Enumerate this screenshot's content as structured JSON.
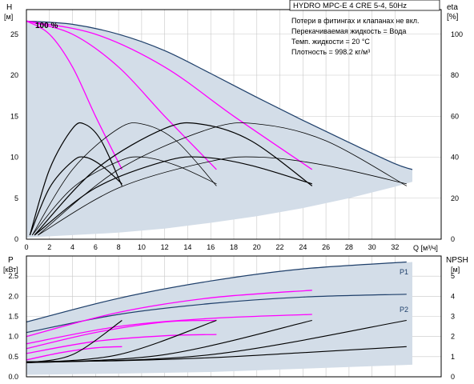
{
  "chart_data": [
    {
      "type": "line",
      "panel": "head_efficiency",
      "title": "HYDRO MPC-E 4 CRE 5-4, 50Hz",
      "notes": [
        "Потери в фитингах и клапанах не вкл.",
        "Перекачиваемая жидкость = Вода",
        "Темп. жидкости = 20 °C",
        "Плотность = 998.2 кг/м³"
      ],
      "annotation": "100 %",
      "xlabel": "Q [м³/ч]",
      "ylabel_left": [
        "H",
        "[м]"
      ],
      "ylabel_right": [
        "eta",
        "[%]"
      ],
      "xlim": [
        0,
        36
      ],
      "ylim_left": [
        0,
        28
      ],
      "ylim_right": [
        0,
        112
      ],
      "xticks": [
        "0",
        "2",
        "4",
        "6",
        "8",
        "10",
        "12",
        "14",
        "16",
        "18",
        "20",
        "22",
        "24",
        "26",
        "28",
        "30",
        "32"
      ],
      "yticks_left": [
        "0",
        "5",
        "10",
        "15",
        "20",
        "25"
      ],
      "yticks_right": [
        "0",
        "20",
        "40",
        "60",
        "80",
        "100"
      ],
      "grid": true,
      "colors": {
        "envelope": "#d3dde8",
        "max_curve": "#1e3f6a",
        "pump_curve": "#ff00ff",
        "eta": "#000000",
        "axis": "#000000"
      },
      "series": [
        {
          "kind": "envelope_max",
          "x": [
            0,
            4,
            8,
            12,
            16,
            20,
            24,
            28,
            32,
            33.5
          ],
          "y": [
            26.6,
            26.2,
            25,
            23,
            20.2,
            17.3,
            14.5,
            11.8,
            9.2,
            8.5
          ]
        },
        {
          "kind": "envelope_min",
          "x": [
            0,
            4,
            8,
            12,
            16,
            20,
            24,
            28,
            32,
            33.5
          ],
          "y": [
            0.2,
            0.5,
            0.8,
            1.3,
            2,
            2.8,
            3.8,
            5,
            6.4,
            7
          ]
        },
        {
          "kind": "pump_curve",
          "units": 1,
          "x": [
            0,
            2,
            4,
            6,
            8.3
          ],
          "y": [
            26.6,
            25,
            21,
            15,
            8.5
          ]
        },
        {
          "kind": "pump_curve",
          "units": 2,
          "x": [
            0,
            4,
            8,
            12,
            16.5
          ],
          "y": [
            26.6,
            25,
            21,
            15,
            8.5
          ]
        },
        {
          "kind": "pump_curve",
          "units": 3,
          "x": [
            0,
            6,
            12,
            18,
            24.8
          ],
          "y": [
            26.6,
            25,
            21,
            15,
            8.5
          ]
        },
        {
          "kind": "eta_curve",
          "units": 1,
          "x": [
            0.3,
            2,
            4,
            5.1,
            6.5,
            8.3
          ],
          "y": [
            2,
            34,
            54,
            56,
            48,
            26
          ]
        },
        {
          "kind": "eta_curve",
          "units": 2,
          "x": [
            0.5,
            4,
            8,
            10.2,
            13,
            16.5
          ],
          "y": [
            2,
            34,
            54,
            56,
            48,
            26
          ]
        },
        {
          "kind": "eta_curve",
          "units": 3,
          "x": [
            0.7,
            6,
            12,
            15.3,
            19.5,
            24.8
          ],
          "y": [
            2,
            34,
            54,
            56,
            48,
            26
          ]
        },
        {
          "kind": "eta_curve",
          "units": 4,
          "x": [
            1,
            8,
            16,
            20.4,
            26,
            33
          ],
          "y": [
            2,
            34,
            54,
            56,
            48,
            26
          ]
        },
        {
          "kind": "eta_curve",
          "units": 1,
          "x": [
            0.3,
            2,
            4,
            5.1,
            6.5,
            8.3
          ],
          "y": [
            2,
            25,
            38,
            40,
            36,
            27
          ]
        },
        {
          "kind": "eta_curve",
          "units": 2,
          "x": [
            0.5,
            4,
            8,
            10.2,
            13,
            16.5
          ],
          "y": [
            2,
            25,
            38,
            40,
            36,
            27
          ]
        },
        {
          "kind": "eta_curve",
          "units": 3,
          "x": [
            0.7,
            6,
            12,
            15.3,
            19.5,
            24.8
          ],
          "y": [
            2,
            25,
            38,
            40,
            36,
            27
          ]
        },
        {
          "kind": "eta_curve",
          "units": 4,
          "x": [
            1,
            8,
            16,
            20.4,
            26,
            33
          ],
          "y": [
            2,
            25,
            38,
            40,
            36,
            27
          ]
        }
      ]
    },
    {
      "type": "line",
      "panel": "power_npsh",
      "xlim": [
        0,
        36
      ],
      "ylim_left": [
        0,
        3
      ],
      "ylim_right": [
        0,
        6
      ],
      "ylabel_left": [
        "P",
        "[кВт]"
      ],
      "ylabel_right": [
        "NPSH",
        "[м]"
      ],
      "yticks_left": [
        "0.0",
        "0.5",
        "1.0",
        "1.5",
        "2.0",
        "2.5"
      ],
      "yticks_right": [
        "0",
        "1",
        "2",
        "3",
        "4",
        "5"
      ],
      "series_labels": [
        "P1",
        "P2"
      ],
      "grid": true,
      "series": [
        {
          "kind": "envelope_max",
          "x": [
            0,
            8,
            16,
            24,
            33.5
          ],
          "y": [
            1.38,
            1.95,
            2.38,
            2.68,
            2.85
          ]
        },
        {
          "kind": "envelope_min",
          "x": [
            0,
            8,
            16,
            24,
            33.5
          ],
          "y": [
            0.05,
            0.08,
            0.12,
            0.2,
            0.3
          ]
        },
        {
          "kind": "P1_max",
          "x": [
            0,
            8,
            16,
            24,
            33
          ],
          "y": [
            1.36,
            1.95,
            2.38,
            2.68,
            2.85
          ]
        },
        {
          "kind": "P2_max",
          "x": [
            0,
            8,
            16,
            24,
            33
          ],
          "y": [
            1.1,
            1.55,
            1.82,
            1.98,
            2.05
          ]
        },
        {
          "kind": "P1_pump",
          "x": [
            0,
            8,
            16,
            24.8
          ],
          "y": [
            1.0,
            1.6,
            1.96,
            2.15
          ]
        },
        {
          "kind": "P2_pump",
          "x": [
            0,
            8,
            16,
            24.8
          ],
          "y": [
            0.82,
            1.25,
            1.45,
            1.55
          ]
        },
        {
          "kind": "P1_pump",
          "x": [
            0,
            6,
            12,
            16.5
          ],
          "y": [
            0.7,
            1.1,
            1.36,
            1.4
          ]
        },
        {
          "kind": "P2_pump",
          "x": [
            0,
            6,
            12,
            16.5
          ],
          "y": [
            0.58,
            0.88,
            1.02,
            1.05
          ]
        },
        {
          "kind": "P1_pump",
          "x": [
            0,
            3,
            6,
            8.3
          ],
          "y": [
            0.42,
            0.6,
            0.72,
            0.75
          ]
        },
        {
          "kind": "NPSH",
          "x": [
            0,
            4,
            8.3
          ],
          "y": [
            0.7,
            1.1,
            2.8
          ]
        },
        {
          "kind": "NPSH",
          "x": [
            0,
            8,
            16.5
          ],
          "y": [
            0.7,
            1.1,
            2.8
          ]
        },
        {
          "kind": "NPSH",
          "x": [
            0,
            12,
            24.8
          ],
          "y": [
            0.7,
            1.1,
            2.8
          ]
        },
        {
          "kind": "NPSH",
          "x": [
            0,
            16,
            33
          ],
          "y": [
            0.7,
            1.1,
            2.8
          ]
        },
        {
          "kind": "NPSH_low",
          "x": [
            0,
            8,
            16,
            24,
            33
          ],
          "y": [
            0.75,
            0.8,
            0.95,
            1.2,
            1.5
          ]
        }
      ]
    }
  ]
}
